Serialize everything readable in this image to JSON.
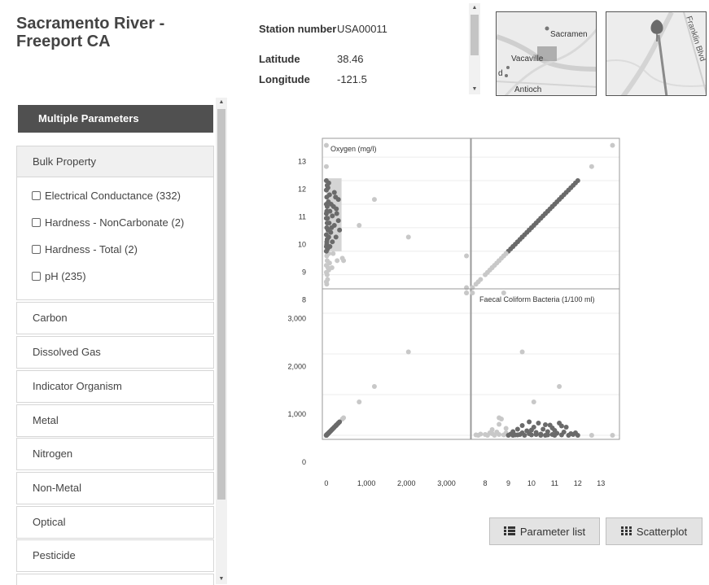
{
  "station": {
    "name": "Sacramento River - Freeport CA",
    "fields": [
      {
        "label": "Station number",
        "value": "USA00011"
      },
      {
        "label": "Latitude",
        "value": "38.46"
      },
      {
        "label": "Longitude",
        "value": "-121.5"
      }
    ]
  },
  "maps": {
    "overview_labels": [
      "Sacramen",
      "Vacaville",
      "d",
      "Antioch"
    ],
    "detail_label": "Franklin Blvd"
  },
  "sidebar": {
    "header": "Multiple Parameters",
    "expanded_group": {
      "label": "Bulk Property",
      "params": [
        "Electrical Conductance (332)",
        "Hardness - NonCarbonate (2)",
        "Hardness - Total (2)",
        "pH (235)"
      ]
    },
    "groups": [
      "Carbon",
      "Dissolved Gas",
      "Indicator Organism",
      "Metal",
      "Nitrogen",
      "Non-Metal",
      "Optical",
      "Pesticide"
    ]
  },
  "chart_data": {
    "type": "scatter",
    "layout": "scatterplot-matrix",
    "variables": [
      {
        "name": "Oxygen (mg/l)",
        "ticks": [
          8,
          9,
          10,
          11,
          12,
          13
        ],
        "ylim": [
          7.4,
          13.8
        ],
        "xlim": [
          7.4,
          13.8
        ]
      },
      {
        "name": "Faecal Coliform Bacteria (1/100 ml)",
        "tick_labels": [
          "0",
          "1,000",
          "2,000",
          "3,000"
        ],
        "ticks": [
          0,
          1000,
          2000,
          3000
        ],
        "ylim": [
          -100,
          3600
        ],
        "xlim": [
          -100,
          3600
        ]
      }
    ],
    "selection": {
      "fc_range": [
        0,
        380
      ]
    },
    "colors": {
      "selected": "#6a6a6a",
      "unselected": "#c8c8c8"
    },
    "points": [
      {
        "o": 7.45,
        "fc": 3500
      },
      {
        "o": 13.5,
        "fc": 0
      },
      {
        "o": 12.6,
        "fc": 0
      },
      {
        "o": 11.2,
        "fc": 1200
      },
      {
        "o": 9.6,
        "fc": 2050
      },
      {
        "o": 8.8,
        "fc": 3500
      },
      {
        "o": 10.1,
        "fc": 820
      },
      {
        "o": 8.6,
        "fc": 430
      },
      {
        "o": 8.7,
        "fc": 400
      },
      {
        "o": 7.6,
        "fc": 10
      },
      {
        "o": 7.8,
        "fc": 30
      },
      {
        "o": 8.0,
        "fc": 20
      },
      {
        "o": 8.1,
        "fc": 0
      },
      {
        "o": 8.2,
        "fc": 60
      },
      {
        "o": 8.3,
        "fc": 40
      },
      {
        "o": 8.4,
        "fc": 0
      },
      {
        "o": 8.5,
        "fc": 80
      },
      {
        "o": 8.6,
        "fc": 20
      },
      {
        "o": 8.8,
        "fc": 10
      },
      {
        "o": 8.9,
        "fc": 60
      },
      {
        "o": 9.0,
        "fc": 0
      },
      {
        "o": 7.7,
        "fc": 0
      },
      {
        "o": 8.3,
        "fc": 140
      },
      {
        "o": 8.6,
        "fc": 270
      },
      {
        "o": 8.9,
        "fc": 170
      },
      {
        "o": 9.1,
        "fc": 30
      },
      {
        "o": 9.2,
        "fc": 90
      },
      {
        "o": 9.3,
        "fc": 10
      },
      {
        "o": 9.4,
        "fc": 150
      },
      {
        "o": 9.5,
        "fc": 20
      },
      {
        "o": 9.6,
        "fc": 60
      },
      {
        "o": 9.7,
        "fc": 0
      },
      {
        "o": 9.8,
        "fc": 110
      },
      {
        "o": 9.9,
        "fc": 40
      },
      {
        "o": 10.0,
        "fc": 10
      },
      {
        "o": 10.1,
        "fc": 200
      },
      {
        "o": 10.2,
        "fc": 70
      },
      {
        "o": 10.3,
        "fc": 300
      },
      {
        "o": 10.4,
        "fc": 30
      },
      {
        "o": 10.5,
        "fc": 150
      },
      {
        "o": 10.6,
        "fc": 0
      },
      {
        "o": 10.7,
        "fc": 90
      },
      {
        "o": 10.8,
        "fc": 250
      },
      {
        "o": 10.9,
        "fc": 20
      },
      {
        "o": 11.0,
        "fc": 120
      },
      {
        "o": 11.1,
        "fc": 50
      },
      {
        "o": 11.2,
        "fc": 300
      },
      {
        "o": 11.3,
        "fc": 10
      },
      {
        "o": 11.4,
        "fc": 80
      },
      {
        "o": 11.5,
        "fc": 200
      },
      {
        "o": 11.6,
        "fc": 0
      },
      {
        "o": 11.7,
        "fc": 40
      },
      {
        "o": 11.8,
        "fc": 20
      },
      {
        "o": 11.9,
        "fc": 60
      },
      {
        "o": 12.0,
        "fc": 0
      },
      {
        "o": 9.4,
        "fc": 10
      },
      {
        "o": 9.9,
        "fc": 330
      },
      {
        "o": 10.6,
        "fc": 260
      },
      {
        "o": 10.2,
        "fc": 20
      },
      {
        "o": 10.9,
        "fc": 180
      },
      {
        "o": 11.3,
        "fc": 230
      },
      {
        "o": 9.6,
        "fc": 240
      },
      {
        "o": 10.4,
        "fc": 0
      },
      {
        "o": 11.0,
        "fc": 0
      },
      {
        "o": 9.2,
        "fc": 0
      },
      {
        "o": 10.0,
        "fc": 130
      },
      {
        "o": 10.7,
        "fc": 10
      }
    ]
  },
  "buttons": {
    "parameter_list": "Parameter list",
    "scatterplot": "Scatterplot"
  }
}
